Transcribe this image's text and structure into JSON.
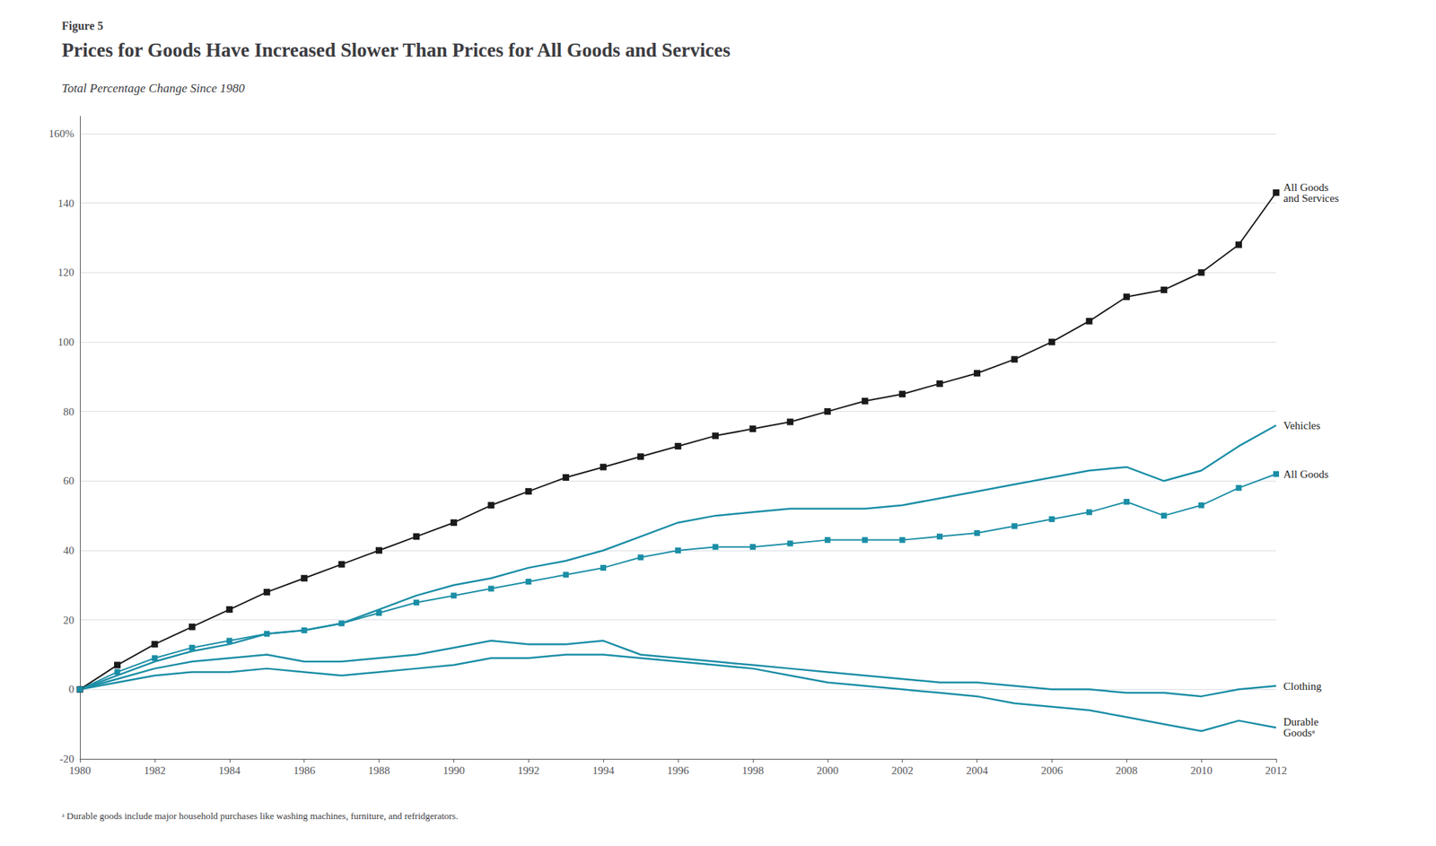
{
  "chart_data": {
    "type": "line",
    "figure_label": "Figure 5",
    "title": "Prices for Goods Have Increased Slower Than Prices for All Goods and Services",
    "subtitle": "Total Percentage Change Since 1980",
    "footnote": "ᵃ Durable goods include major household purchases like washing machines, furniture, and refridgerators.",
    "x": [
      1980,
      1981,
      1982,
      1983,
      1984,
      1985,
      1986,
      1987,
      1988,
      1989,
      1990,
      1991,
      1992,
      1993,
      1994,
      1995,
      1996,
      1997,
      1998,
      1999,
      2000,
      2001,
      2002,
      2003,
      2004,
      2005,
      2006,
      2007,
      2008,
      2009,
      2010,
      2011,
      2012
    ],
    "xlim": [
      1980,
      2012
    ],
    "xticks": [
      1980,
      1982,
      1984,
      1986,
      1988,
      1990,
      1992,
      1994,
      1996,
      1998,
      2000,
      2002,
      2004,
      2006,
      2008,
      2010,
      2012
    ],
    "ylim": [
      -20,
      165
    ],
    "yticks": [
      -20,
      0,
      20,
      40,
      60,
      80,
      100,
      120,
      140,
      {
        "value": 160,
        "label": "160%"
      }
    ],
    "grid": true,
    "series": [
      {
        "name": "All Goods\nand Services",
        "color": "#1a1a1a",
        "marker": "square",
        "line_style": "solid",
        "values": [
          0,
          7,
          13,
          18,
          23,
          28,
          32,
          36,
          40,
          44,
          48,
          53,
          57,
          61,
          64,
          67,
          70,
          73,
          75,
          77,
          80,
          83,
          85,
          88,
          91,
          95,
          100,
          106,
          113,
          115,
          120,
          128,
          143
        ]
      },
      {
        "name": "All Goods",
        "color": "#1B8EA6",
        "marker": "square",
        "line_style": "solid",
        "values": [
          0,
          5,
          9,
          12,
          14,
          16,
          17,
          19,
          22,
          25,
          27,
          29,
          31,
          33,
          35,
          38,
          40,
          41,
          41,
          42,
          43,
          43,
          43,
          44,
          45,
          47,
          49,
          51,
          54,
          50,
          53,
          58,
          62
        ]
      },
      {
        "name": "Vehicles",
        "color": "#1B8EA6",
        "line_style": "solid",
        "values": [
          0,
          4,
          8,
          11,
          13,
          16,
          17,
          19,
          23,
          27,
          30,
          32,
          35,
          37,
          40,
          44,
          48,
          50,
          51,
          52,
          52,
          52,
          53,
          55,
          57,
          59,
          61,
          63,
          64,
          60,
          63,
          70,
          76
        ]
      },
      {
        "name": "Clothing",
        "color": "#1B8EA6",
        "line_style": "solid",
        "values": [
          0,
          3,
          6,
          8,
          9,
          10,
          8,
          8,
          9,
          10,
          12,
          14,
          13,
          13,
          14,
          10,
          9,
          8,
          7,
          6,
          5,
          4,
          3,
          2,
          2,
          1,
          0,
          0,
          -1,
          -1,
          -2,
          0,
          1
        ]
      },
      {
        "name": "Durable\nGoodsᵃ",
        "color": "#1B8EA6",
        "line_style": "solid",
        "values": [
          0,
          2,
          4,
          5,
          5,
          6,
          5,
          4,
          5,
          6,
          7,
          9,
          9,
          10,
          10,
          9,
          8,
          7,
          6,
          4,
          2,
          1,
          0,
          -1,
          -2,
          -4,
          -5,
          -6,
          -8,
          -10,
          -12,
          -9,
          -11
        ]
      }
    ]
  }
}
